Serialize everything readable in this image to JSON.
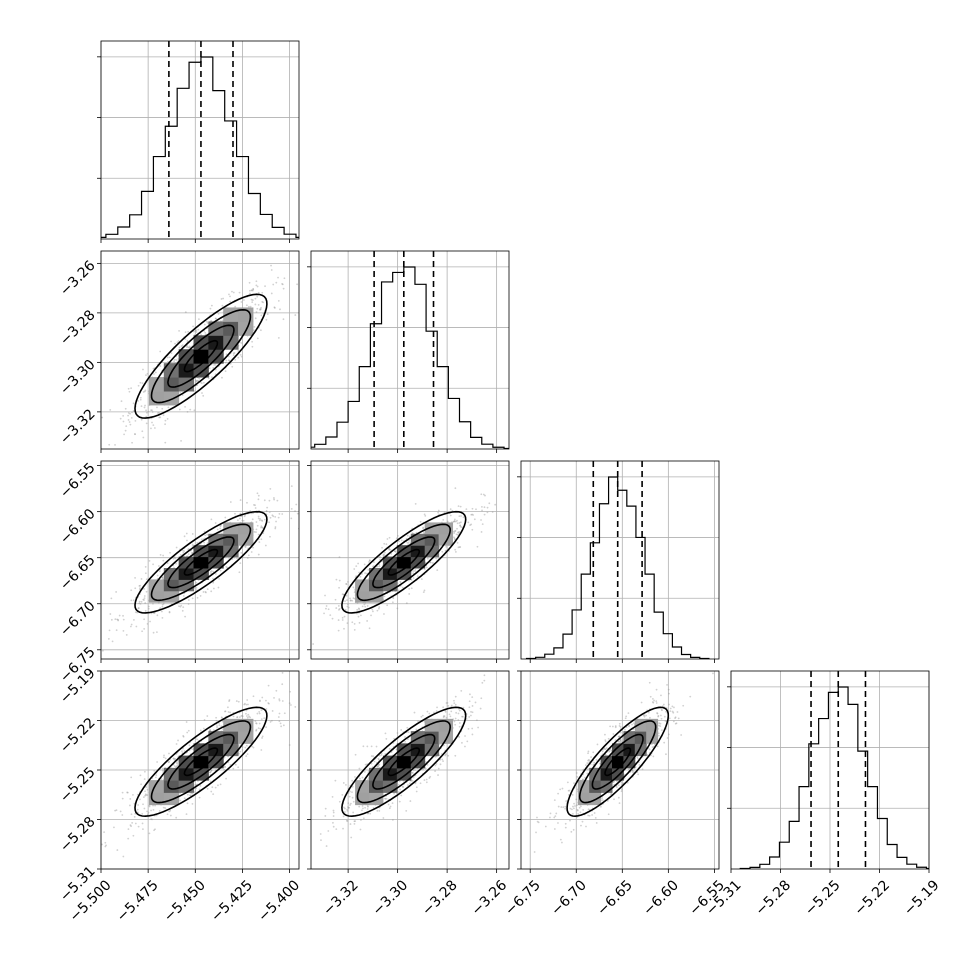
{
  "chart_data": {
    "type": "corner",
    "grid": true,
    "parameters": [
      {
        "mean": -5.447,
        "sd": 0.0175,
        "range": [
          -5.5,
          -5.395
        ],
        "ticks": [
          -5.5,
          -5.475,
          -5.45,
          -5.425,
          -5.4
        ],
        "tick_labels": [
          "−5.500",
          "−5.475",
          "−5.450",
          "−5.425",
          "−5.400"
        ],
        "quantiles": [
          -5.464,
          -5.447,
          -5.43
        ]
      },
      {
        "mean": -3.2975,
        "sd": 0.0125,
        "range": [
          -3.335,
          -3.255
        ],
        "ticks": [
          -3.32,
          -3.3,
          -3.28,
          -3.26
        ],
        "tick_labels": [
          "−3.32",
          "−3.30",
          "−3.28",
          "−3.26"
        ],
        "quantiles": [
          -3.3095,
          -3.2975,
          -3.2855
        ]
      },
      {
        "mean": -6.655,
        "sd": 0.0275,
        "range": [
          -6.76,
          -6.545
        ],
        "ticks": [
          -6.75,
          -6.7,
          -6.65,
          -6.6,
          -6.55
        ],
        "tick_labels": [
          "−6.75",
          "−6.70",
          "−6.65",
          "−6.60",
          "−6.55"
        ],
        "quantiles": [
          -6.6815,
          -6.655,
          -6.6285
        ]
      },
      {
        "mean": -5.245,
        "sd": 0.0165,
        "range": [
          -5.31,
          -5.19
        ],
        "ticks": [
          -5.31,
          -5.28,
          -5.25,
          -5.22,
          -5.19
        ],
        "tick_labels": [
          "−5.31",
          "−5.28",
          "−5.25",
          "−5.22",
          "−5.19"
        ],
        "quantiles": [
          -5.2615,
          -5.245,
          -5.2285
        ]
      }
    ],
    "correlation": 0.85,
    "histogram_bins": 20,
    "contour_levels": [
      0.5,
      1.0,
      1.5,
      2.0
    ]
  }
}
